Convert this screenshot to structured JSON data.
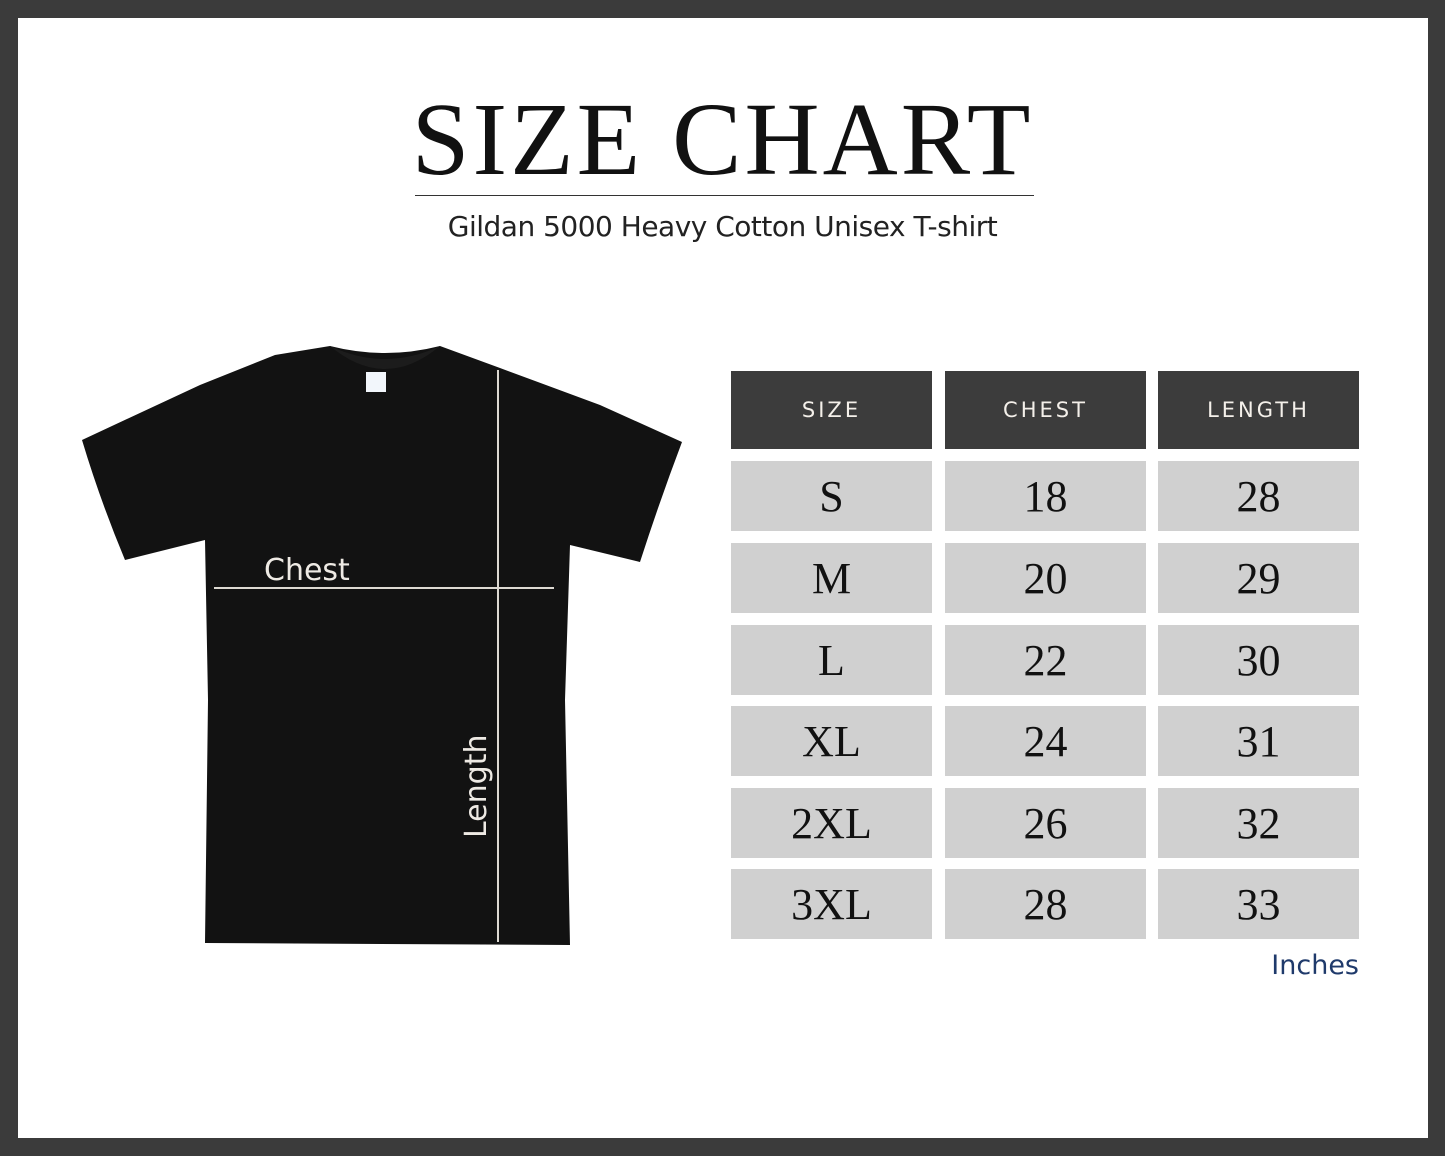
{
  "title": "SIZE CHART",
  "subtitle": "Gildan 5000 Heavy Cotton Unisex T-shirt",
  "diagram": {
    "chest_label": "Chest",
    "length_label": "Length"
  },
  "table": {
    "headers": [
      "SIZE",
      "CHEST",
      "LENGTH"
    ],
    "rows": [
      [
        "S",
        "18",
        "28"
      ],
      [
        "M",
        "20",
        "29"
      ],
      [
        "L",
        "22",
        "30"
      ],
      [
        "XL",
        "24",
        "31"
      ],
      [
        "2XL",
        "26",
        "32"
      ],
      [
        "3XL",
        "28",
        "33"
      ]
    ]
  },
  "unit": "Inches",
  "colors": {
    "frame": "#3b3b3b",
    "header": "#3c3c3c",
    "cell": "#d0d0d0",
    "unit": "#1f3a6b"
  }
}
